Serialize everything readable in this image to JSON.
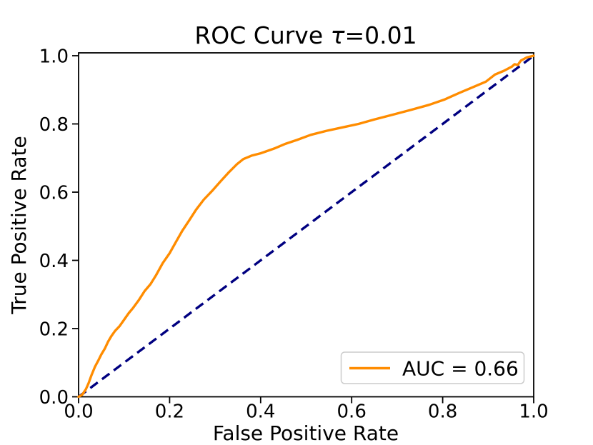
{
  "figure": {
    "background": "#ffffff"
  },
  "chart_data": {
    "type": "line",
    "title": "ROC Curve τ=0.01",
    "title_parts": {
      "prefix": "ROC Curve ",
      "tau": "τ",
      "suffix": "=0.01"
    },
    "xlabel": "False Positive Rate",
    "ylabel": "True Positive Rate",
    "xlim": [
      0.0,
      1.0
    ],
    "ylim": [
      0.0,
      1.0
    ],
    "grid": false,
    "xtick_labels": [
      "0.0",
      "0.2",
      "0.4",
      "0.6",
      "0.8",
      "1.0"
    ],
    "ytick_labels": [
      "0.0",
      "0.2",
      "0.4",
      "0.6",
      "0.8",
      "1.0"
    ],
    "legend": {
      "position": "lower right",
      "entries": [
        {
          "label": "AUC = 0.66",
          "color": "#FF8C00",
          "linestyle": "solid"
        }
      ]
    },
    "series": [
      {
        "name": "roc-curve",
        "label": "AUC = 0.66",
        "color": "#FF8C00",
        "linestyle": "solid",
        "linewidth": 3.4,
        "points": [
          [
            0.0,
            0.0
          ],
          [
            0.008,
            0.006
          ],
          [
            0.016,
            0.022
          ],
          [
            0.022,
            0.04
          ],
          [
            0.028,
            0.062
          ],
          [
            0.036,
            0.088
          ],
          [
            0.044,
            0.108
          ],
          [
            0.05,
            0.124
          ],
          [
            0.058,
            0.142
          ],
          [
            0.065,
            0.162
          ],
          [
            0.072,
            0.178
          ],
          [
            0.08,
            0.193
          ],
          [
            0.09,
            0.207
          ],
          [
            0.1,
            0.226
          ],
          [
            0.11,
            0.245
          ],
          [
            0.12,
            0.261
          ],
          [
            0.132,
            0.283
          ],
          [
            0.145,
            0.31
          ],
          [
            0.158,
            0.33
          ],
          [
            0.17,
            0.356
          ],
          [
            0.185,
            0.392
          ],
          [
            0.2,
            0.421
          ],
          [
            0.213,
            0.452
          ],
          [
            0.228,
            0.487
          ],
          [
            0.243,
            0.517
          ],
          [
            0.258,
            0.548
          ],
          [
            0.275,
            0.578
          ],
          [
            0.293,
            0.603
          ],
          [
            0.31,
            0.629
          ],
          [
            0.33,
            0.658
          ],
          [
            0.348,
            0.682
          ],
          [
            0.362,
            0.697
          ],
          [
            0.38,
            0.707
          ],
          [
            0.4,
            0.714
          ],
          [
            0.43,
            0.728
          ],
          [
            0.455,
            0.742
          ],
          [
            0.48,
            0.753
          ],
          [
            0.51,
            0.768
          ],
          [
            0.545,
            0.78
          ],
          [
            0.58,
            0.79
          ],
          [
            0.615,
            0.8
          ],
          [
            0.65,
            0.813
          ],
          [
            0.69,
            0.827
          ],
          [
            0.73,
            0.841
          ],
          [
            0.77,
            0.856
          ],
          [
            0.805,
            0.872
          ],
          [
            0.835,
            0.89
          ],
          [
            0.865,
            0.907
          ],
          [
            0.895,
            0.924
          ],
          [
            0.915,
            0.945
          ],
          [
            0.935,
            0.956
          ],
          [
            0.952,
            0.968
          ],
          [
            0.958,
            0.975
          ],
          [
            0.965,
            0.973
          ],
          [
            0.972,
            0.986
          ],
          [
            0.985,
            0.995
          ],
          [
            1.0,
            1.0
          ]
        ]
      },
      {
        "name": "chance-diagonal",
        "label": null,
        "color": "#000080",
        "linestyle": "dashed",
        "linewidth": 3.4,
        "points": [
          [
            0.0,
            0.0
          ],
          [
            1.0,
            1.0
          ]
        ]
      }
    ],
    "colors": {
      "roc": "#FF8C00",
      "chance": "#000080",
      "frame": "#000000",
      "legend_border": "#CCCCCC",
      "background": "#FFFFFF"
    }
  }
}
